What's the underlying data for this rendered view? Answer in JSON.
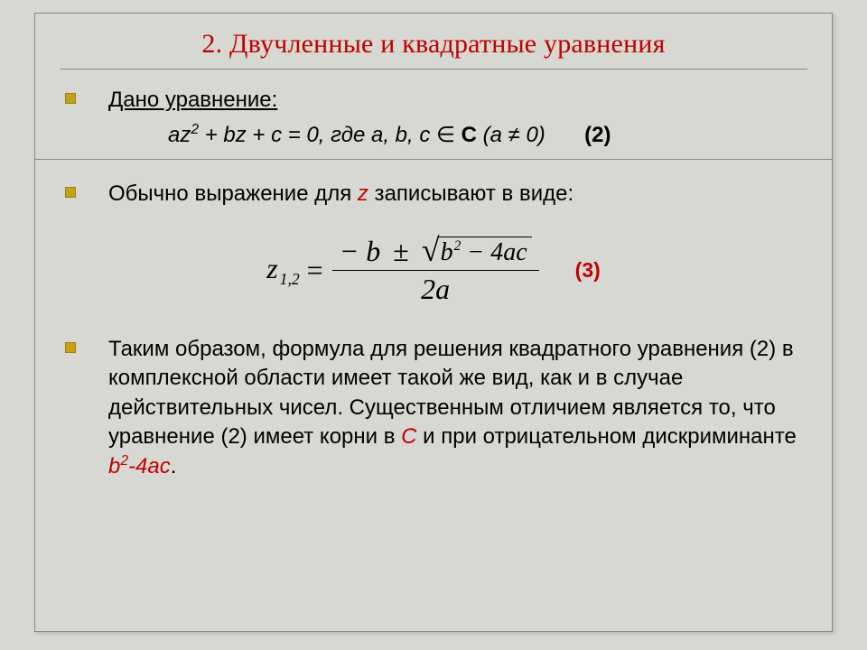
{
  "title": "2. Двучленные и квадратные уравнения",
  "section1": {
    "label": "Дано уравнение:",
    "equation_prefix": "az",
    "equation_mid1": " + bz + c = 0, где a, b, c ",
    "elem_symbol": "∈",
    "set_name": " C ",
    "condition": "(a ≠ 0)",
    "eq_number": "(2)"
  },
  "section2": {
    "intro_before": "Обычно выражение для ",
    "z_var": "z",
    "intro_after": " записывают в виде:",
    "formula": {
      "lhs": "z",
      "sub": "1,2",
      "eq": " = ",
      "neg_b": "− b",
      "pm": "±",
      "rad_b": "b",
      "rad_sup": "2",
      "rad_rest": " − 4ac",
      "den": "2a"
    },
    "formula_number": "(3)"
  },
  "section3": {
    "text_before": "Таким образом, формула для решения квадратного уравнения (2) в комплексной области имеет такой же вид, как и в случае действительных чисел. Существенным отличием является то, что уравнение (2) имеет корни в ",
    "set_C": "C",
    "text_mid": " и при отрицательном дискриминанте ",
    "discriminant": "b",
    "discr_sup": "2",
    "discr_rest": "-4ac",
    "period": "."
  },
  "colors": {
    "title": "#c00000",
    "bullet_fill": "#c5a118",
    "bullet_border": "#a08010",
    "background": "#d7d8d2",
    "border": "#8a8b85",
    "accent": "#c00000"
  },
  "typography": {
    "title_fontsize": 30,
    "body_fontsize": 24,
    "formula_fontsize": 32,
    "title_font": "Georgia serif",
    "body_font": "Arial"
  }
}
